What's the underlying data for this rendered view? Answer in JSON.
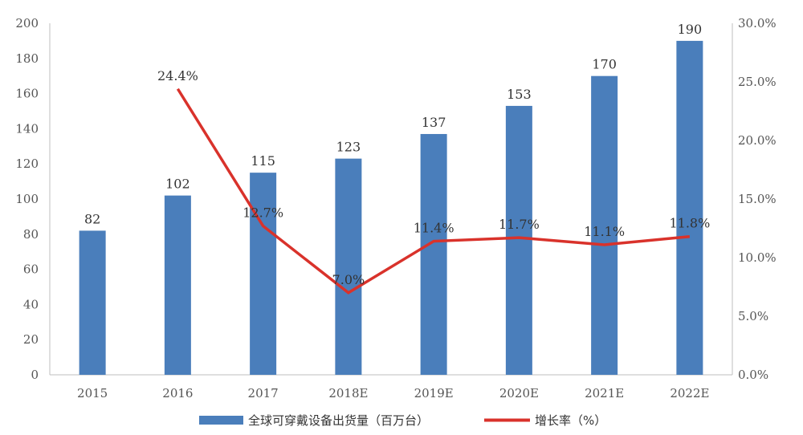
{
  "chart_data": {
    "type": "bar",
    "categories": [
      "2015",
      "2016",
      "2017",
      "2018E",
      "2019E",
      "2020E",
      "2021E",
      "2022E"
    ],
    "series": [
      {
        "name": "全球可穿戴设备出货量（百万台）",
        "type": "bar",
        "axis": "left",
        "color": "#4a7ebb",
        "values": [
          82,
          102,
          115,
          123,
          137,
          153,
          170,
          190
        ],
        "labels": [
          "82",
          "102",
          "115",
          "123",
          "137",
          "153",
          "170",
          "190"
        ]
      },
      {
        "name": "增长率（%）",
        "type": "line",
        "axis": "right",
        "color": "#d9322b",
        "values": [
          null,
          24.4,
          12.7,
          7.0,
          11.4,
          11.7,
          11.1,
          11.8
        ],
        "labels": [
          "",
          "24.4%",
          "12.7%",
          "7.0%",
          "11.4%",
          "11.7%",
          "11.1%",
          "11.8%"
        ]
      }
    ],
    "y_left": {
      "min": 0,
      "max": 200,
      "ticks": [
        "0",
        "20",
        "40",
        "60",
        "80",
        "100",
        "120",
        "140",
        "160",
        "180",
        "200"
      ]
    },
    "y_right": {
      "min": 0,
      "max": 30,
      "ticks": [
        "0.0%",
        "5.0%",
        "10.0%",
        "15.0%",
        "20.0%",
        "25.0%",
        "30.0%"
      ]
    },
    "grid": false,
    "legend_position": "bottom"
  }
}
